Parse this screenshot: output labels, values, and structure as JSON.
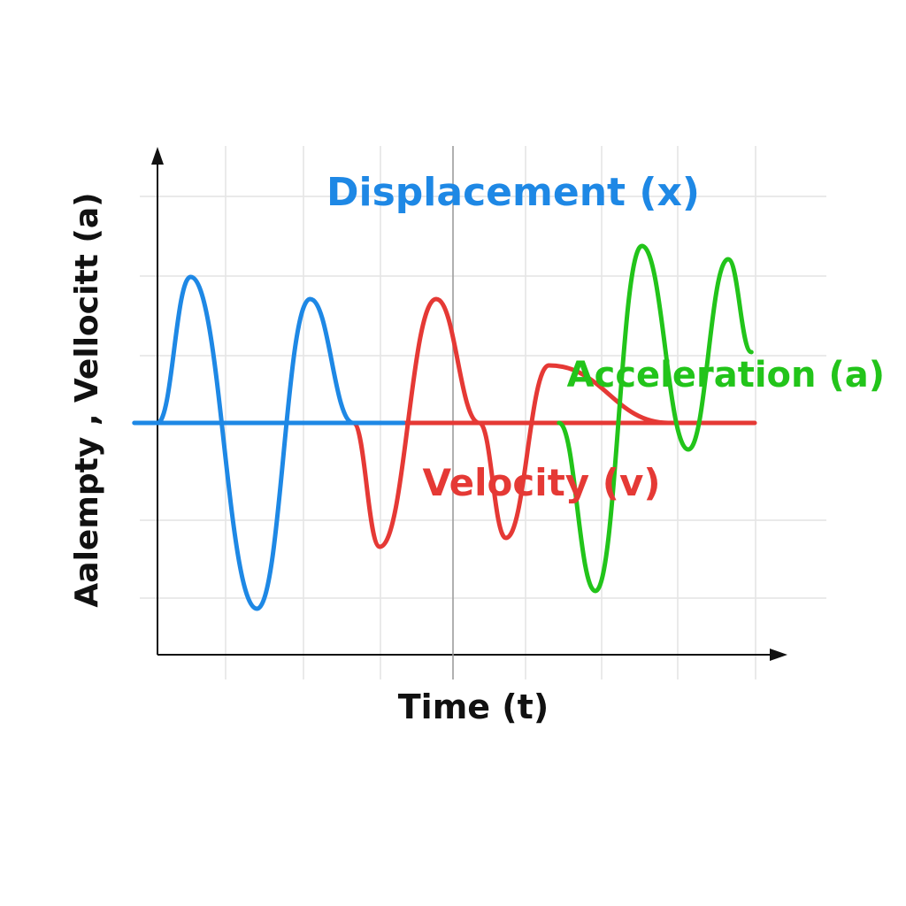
{
  "chart_data": {
    "type": "line",
    "title": "",
    "xlabel": "Time (t)",
    "ylabel": "Aalempty , Vellocitt (a)",
    "grid": true,
    "colors": {
      "displacement": "#1e88e5",
      "velocity": "#e53935",
      "acceleration": "#22c41a"
    },
    "series": [
      {
        "name": "Displacement (x)",
        "color": "#1e88e5",
        "points": [
          [
            0,
            0
          ],
          [
            0.5,
            1.65
          ],
          [
            1.5,
            -2.1
          ],
          [
            2.3,
            1.4
          ],
          [
            2.95,
            0
          ],
          [
            3.7,
            0
          ]
        ]
      },
      {
        "name": "Velocity (v)",
        "color": "#e53935",
        "points": [
          [
            2.95,
            0
          ],
          [
            3.35,
            -1.4
          ],
          [
            4.2,
            1.4
          ],
          [
            4.85,
            0
          ],
          [
            5.25,
            -1.3
          ],
          [
            5.9,
            0.65
          ],
          [
            7.7,
            0
          ]
        ]
      },
      {
        "name": "Acceleration (a)",
        "color": "#22c41a",
        "points": [
          [
            6.05,
            0
          ],
          [
            6.6,
            -1.9
          ],
          [
            7.3,
            2.0
          ],
          [
            8.0,
            -0.3
          ],
          [
            8.6,
            1.85
          ],
          [
            8.95,
            0.8
          ]
        ]
      },
      {
        "name": "",
        "color": "#1e88e5",
        "points": [
          [
            -0.35,
            0
          ],
          [
            3.7,
            0
          ]
        ]
      },
      {
        "name": "",
        "color": "#e53935",
        "points": [
          [
            3.7,
            0
          ],
          [
            9.0,
            0
          ]
        ]
      }
    ]
  }
}
